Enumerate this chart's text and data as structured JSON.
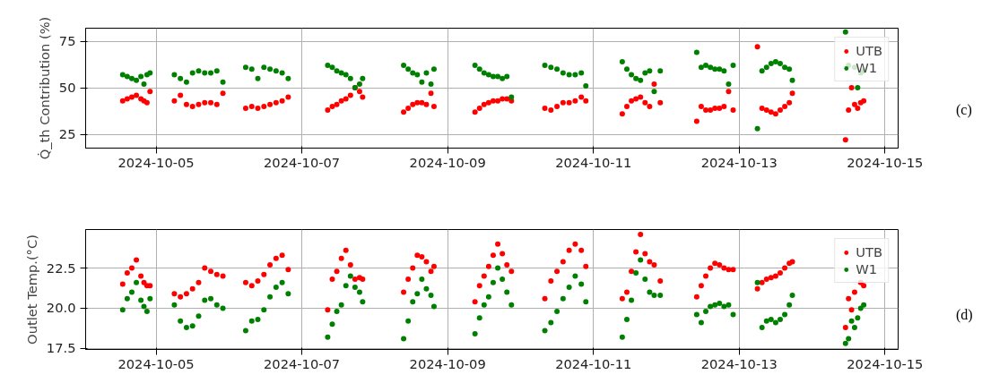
{
  "chart_data": [
    {
      "type": "scatter",
      "ylabel": "Q̇_th Contribution (%)",
      "annotations": [
        "(c)"
      ],
      "xlim": [
        "2024-10-04T00:48",
        "2024-10-15T04:20"
      ],
      "ylim": [
        17.6,
        82
      ],
      "xticks": [
        "2024-10-05",
        "2024-10-07",
        "2024-10-09",
        "2024-10-11",
        "2024-10-13",
        "2024-10-15"
      ],
      "yticks": [
        25,
        50,
        75
      ],
      "grid": true,
      "legend": "top right",
      "marker": "circle",
      "x": [
        "2024-10-04T13:00",
        "2024-10-04T14:30",
        "2024-10-04T16:00",
        "2024-10-04T17:30",
        "2024-10-04T19:00",
        "2024-10-04T20:00",
        "2024-10-04T21:00",
        "2024-10-04T22:00",
        "2024-10-05T06:00",
        "2024-10-05T08:00",
        "2024-10-05T10:00",
        "2024-10-05T12:00",
        "2024-10-05T14:00",
        "2024-10-05T16:00",
        "2024-10-05T18:00",
        "2024-10-05T20:00",
        "2024-10-05T22:00",
        "2024-10-06T05:30",
        "2024-10-06T07:30",
        "2024-10-06T09:30",
        "2024-10-06T11:30",
        "2024-10-06T13:30",
        "2024-10-06T15:30",
        "2024-10-06T17:30",
        "2024-10-06T19:30",
        "2024-10-07T08:30",
        "2024-10-07T10:00",
        "2024-10-07T11:30",
        "2024-10-07T13:00",
        "2024-10-07T14:30",
        "2024-10-07T16:00",
        "2024-10-07T17:30",
        "2024-10-07T19:00",
        "2024-10-07T20:00",
        "2024-10-08T09:30",
        "2024-10-08T11:00",
        "2024-10-08T12:30",
        "2024-10-08T14:00",
        "2024-10-08T15:30",
        "2024-10-08T17:00",
        "2024-10-08T18:30",
        "2024-10-08T19:30",
        "2024-10-09T09:00",
        "2024-10-09T10:30",
        "2024-10-09T12:00",
        "2024-10-09T13:30",
        "2024-10-09T15:00",
        "2024-10-09T16:30",
        "2024-10-09T18:00",
        "2024-10-09T19:30",
        "2024-10-09T21:00",
        "2024-10-10T08:00",
        "2024-10-10T10:00",
        "2024-10-10T12:00",
        "2024-10-10T14:00",
        "2024-10-10T16:00",
        "2024-10-10T18:00",
        "2024-10-10T20:00",
        "2024-10-10T21:30",
        "2024-10-11T09:30",
        "2024-10-11T11:00",
        "2024-10-11T12:30",
        "2024-10-11T14:00",
        "2024-10-11T15:30",
        "2024-10-11T17:00",
        "2024-10-11T18:30",
        "2024-10-11T20:00",
        "2024-10-11T22:00",
        "2024-10-12T10:00",
        "2024-10-12T11:30",
        "2024-10-12T13:00",
        "2024-10-12T14:30",
        "2024-10-12T16:00",
        "2024-10-12T17:30",
        "2024-10-12T19:00",
        "2024-10-12T20:30",
        "2024-10-12T22:00",
        "2024-10-13T06:00",
        "2024-10-13T07:30",
        "2024-10-13T09:00",
        "2024-10-13T10:30",
        "2024-10-13T12:00",
        "2024-10-13T13:30",
        "2024-10-13T15:00",
        "2024-10-13T16:30",
        "2024-10-13T17:30",
        "2024-10-14T11:00",
        "2024-10-14T12:00",
        "2024-10-14T13:00",
        "2024-10-14T14:00",
        "2024-10-14T15:00",
        "2024-10-14T16:00",
        "2024-10-14T17:00"
      ],
      "series": [
        {
          "name": "UTB",
          "color": "#ff0000",
          "values": [
            43,
            44,
            45,
            46,
            44,
            43,
            42,
            48,
            43,
            46,
            41,
            40,
            41,
            42,
            42,
            41,
            47,
            39,
            40,
            39,
            40,
            41,
            42,
            43,
            45,
            38,
            40,
            41,
            43,
            44,
            46,
            50,
            48,
            45,
            37,
            39,
            41,
            42,
            42,
            41,
            47,
            40,
            37,
            39,
            41,
            42,
            43,
            43,
            44,
            44,
            43,
            39,
            38,
            40,
            42,
            42,
            43,
            45,
            43,
            36,
            40,
            43,
            44,
            45,
            42,
            40,
            52,
            42,
            32,
            40,
            38,
            38,
            39,
            39,
            40,
            48,
            38,
            72,
            39,
            38,
            37,
            36,
            38,
            40,
            42,
            47,
            22,
            38,
            50,
            41,
            39,
            42,
            43
          ]
        },
        {
          "name": "W1",
          "color": "#008000",
          "values": [
            57,
            56,
            55,
            54,
            56,
            52,
            57,
            58,
            57,
            55,
            53,
            58,
            59,
            58,
            58,
            59,
            53,
            61,
            60,
            55,
            61,
            60,
            59,
            58,
            55,
            62,
            61,
            59,
            58,
            57,
            55,
            50,
            52,
            55,
            62,
            60,
            58,
            57,
            53,
            58,
            52,
            60,
            62,
            60,
            58,
            57,
            56,
            56,
            55,
            56,
            45,
            62,
            61,
            60,
            58,
            57,
            57,
            58,
            51,
            64,
            60,
            57,
            55,
            54,
            58,
            59,
            48,
            59,
            69,
            61,
            62,
            61,
            60,
            60,
            59,
            52,
            62,
            28,
            59,
            61,
            63,
            64,
            63,
            61,
            60,
            54,
            80,
            62,
            null,
            61,
            50,
            58,
            59
          ]
        }
      ]
    },
    {
      "type": "scatter",
      "ylabel": "Outlet Temp.(°C)",
      "annotations": [
        "(d)"
      ],
      "xlim": [
        "2024-10-04T00:48",
        "2024-10-15T04:20"
      ],
      "ylim": [
        17.43,
        24.9
      ],
      "xticks": [
        "2024-10-05",
        "2024-10-07",
        "2024-10-09",
        "2024-10-11",
        "2024-10-13",
        "2024-10-15"
      ],
      "yticks": [
        17.5,
        {
          "value": 20,
          "label": "20.0"
        },
        22.5
      ],
      "grid": true,
      "legend": "top right",
      "marker": "circle",
      "x": [
        "2024-10-04T13:00",
        "2024-10-04T14:30",
        "2024-10-04T16:00",
        "2024-10-04T17:30",
        "2024-10-04T19:00",
        "2024-10-04T20:00",
        "2024-10-04T21:00",
        "2024-10-04T22:00",
        "2024-10-05T06:00",
        "2024-10-05T08:00",
        "2024-10-05T10:00",
        "2024-10-05T12:00",
        "2024-10-05T14:00",
        "2024-10-05T16:00",
        "2024-10-05T18:00",
        "2024-10-05T20:00",
        "2024-10-05T22:00",
        "2024-10-06T05:30",
        "2024-10-06T07:30",
        "2024-10-06T09:30",
        "2024-10-06T11:30",
        "2024-10-06T13:30",
        "2024-10-06T15:30",
        "2024-10-06T17:30",
        "2024-10-06T19:30",
        "2024-10-07T08:30",
        "2024-10-07T10:00",
        "2024-10-07T11:30",
        "2024-10-07T13:00",
        "2024-10-07T14:30",
        "2024-10-07T16:00",
        "2024-10-07T17:30",
        "2024-10-07T19:00",
        "2024-10-07T20:00",
        "2024-10-08T09:30",
        "2024-10-08T11:00",
        "2024-10-08T12:30",
        "2024-10-08T14:00",
        "2024-10-08T15:30",
        "2024-10-08T17:00",
        "2024-10-08T18:30",
        "2024-10-08T19:30",
        "2024-10-09T09:00",
        "2024-10-09T10:30",
        "2024-10-09T12:00",
        "2024-10-09T13:30",
        "2024-10-09T15:00",
        "2024-10-09T16:30",
        "2024-10-09T18:00",
        "2024-10-09T19:30",
        "2024-10-09T21:00",
        "2024-10-10T08:00",
        "2024-10-10T10:00",
        "2024-10-10T12:00",
        "2024-10-10T14:00",
        "2024-10-10T16:00",
        "2024-10-10T18:00",
        "2024-10-10T20:00",
        "2024-10-10T21:30",
        "2024-10-11T09:30",
        "2024-10-11T11:00",
        "2024-10-11T12:30",
        "2024-10-11T14:00",
        "2024-10-11T15:30",
        "2024-10-11T17:00",
        "2024-10-11T18:30",
        "2024-10-11T20:00",
        "2024-10-11T22:00",
        "2024-10-12T10:00",
        "2024-10-12T11:30",
        "2024-10-12T13:00",
        "2024-10-12T14:30",
        "2024-10-12T16:00",
        "2024-10-12T17:30",
        "2024-10-12T19:00",
        "2024-10-12T20:30",
        "2024-10-12T22:00",
        "2024-10-13T06:00",
        "2024-10-13T07:30",
        "2024-10-13T09:00",
        "2024-10-13T10:30",
        "2024-10-13T12:00",
        "2024-10-13T13:30",
        "2024-10-13T15:00",
        "2024-10-13T16:30",
        "2024-10-13T17:30",
        "2024-10-14T11:00",
        "2024-10-14T12:00",
        "2024-10-14T13:00",
        "2024-10-14T14:00",
        "2024-10-14T15:00",
        "2024-10-14T16:00",
        "2024-10-14T17:00"
      ],
      "series": [
        {
          "name": "UTB",
          "color": "#ff0000",
          "values": [
            21.5,
            22.2,
            22.5,
            23.0,
            22.0,
            21.6,
            21.4,
            21.4,
            20.9,
            20.7,
            20.9,
            21.2,
            21.6,
            22.5,
            22.3,
            22.1,
            22.0,
            21.6,
            21.4,
            21.7,
            22.1,
            22.7,
            23.1,
            23.3,
            22.4,
            19.9,
            21.8,
            22.3,
            23.1,
            23.6,
            22.7,
            21.8,
            21.9,
            21.8,
            21.0,
            21.8,
            22.5,
            23.3,
            23.2,
            22.9,
            22.3,
            22.6,
            20.4,
            21.4,
            22.0,
            22.6,
            23.3,
            24.0,
            23.4,
            22.7,
            22.3,
            20.6,
            21.7,
            22.3,
            22.9,
            23.6,
            24.0,
            23.6,
            22.6,
            20.6,
            21.0,
            22.3,
            23.5,
            24.6,
            23.4,
            22.9,
            22.7,
            21.7,
            20.7,
            21.4,
            22.0,
            22.5,
            22.8,
            22.7,
            22.5,
            22.4,
            22.4,
            21.2,
            21.6,
            21.8,
            21.9,
            22.0,
            22.2,
            22.5,
            22.8,
            22.9,
            18.8,
            20.6,
            19.9,
            21.0,
            null,
            21.6,
            21.4
          ]
        },
        {
          "name": "W1",
          "color": "#008000",
          "values": [
            19.9,
            20.6,
            21.0,
            21.6,
            20.5,
            20.1,
            19.8,
            20.6,
            20.2,
            19.2,
            18.8,
            18.9,
            19.5,
            20.5,
            20.6,
            20.2,
            20.0,
            18.6,
            19.2,
            19.3,
            19.9,
            20.7,
            21.3,
            21.6,
            20.9,
            18.2,
            19.0,
            19.8,
            20.2,
            21.4,
            22.0,
            21.3,
            21.0,
            20.4,
            18.1,
            19.2,
            20.4,
            20.9,
            21.8,
            21.2,
            20.8,
            20.1,
            18.4,
            19.4,
            20.2,
            20.7,
            21.6,
            22.5,
            21.8,
            21.0,
            20.2,
            18.6,
            19.1,
            19.8,
            20.6,
            21.3,
            22.0,
            21.5,
            20.4,
            18.2,
            19.3,
            20.5,
            22.2,
            23.0,
            21.8,
            21.0,
            20.8,
            20.8,
            19.6,
            19.1,
            19.8,
            20.1,
            20.2,
            20.3,
            20.1,
            20.2,
            19.6,
            21.6,
            18.8,
            19.2,
            19.3,
            19.1,
            19.3,
            19.6,
            20.2,
            20.8,
            17.8,
            18.1,
            19.2,
            18.8,
            19.4,
            20.0,
            20.2
          ]
        }
      ]
    }
  ]
}
